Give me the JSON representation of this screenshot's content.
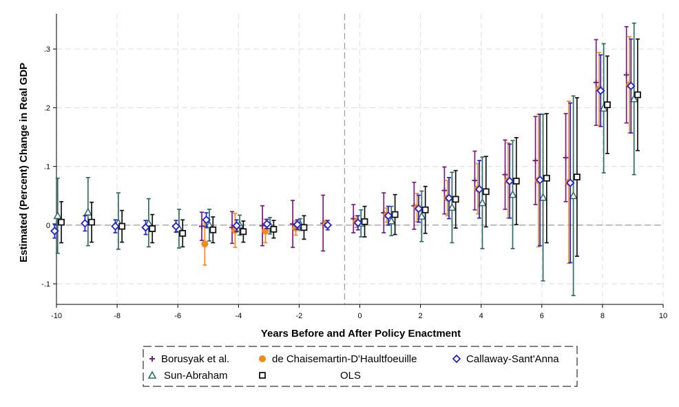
{
  "chart_data": {
    "type": "scatter",
    "title": "",
    "xlabel": "Years Before and After Policy Enactment",
    "ylabel": "Estimated (Percent) Change in Real GDP",
    "xlim": [
      -10,
      10
    ],
    "ylim": [
      -0.135,
      0.36
    ],
    "xticks": [
      -10,
      -8,
      -6,
      -4,
      -2,
      0,
      2,
      4,
      6,
      8,
      10
    ],
    "xtick_labels": [
      "-10",
      "-8",
      "-6",
      "-4",
      "-2",
      "0",
      "2",
      "4",
      "6",
      "8",
      "10"
    ],
    "yticks": [
      -0.1,
      0,
      0.1,
      0.2,
      0.3
    ],
    "ytick_labels": [
      "-.1",
      "0",
      ".1",
      ".2",
      ".3"
    ],
    "reference_lines": {
      "x": -0.5,
      "y": 0
    },
    "grid": true,
    "legend_position": "bottom",
    "series": [
      {
        "name": "Borusyak et al.",
        "marker": "plus",
        "color": "#7a1a7a",
        "points": [
          {
            "x": -5,
            "y": -0.002,
            "lo": -0.026,
            "hi": 0.022
          },
          {
            "x": -4,
            "y": -0.004,
            "lo": -0.031,
            "hi": 0.023
          },
          {
            "x": -3,
            "y": -0.001,
            "lo": -0.035,
            "hi": 0.033
          },
          {
            "x": -2,
            "y": 0.002,
            "lo": -0.038,
            "hi": 0.042
          },
          {
            "x": -1,
            "y": 0.003,
            "lo": -0.044,
            "hi": 0.051
          },
          {
            "x": 0,
            "y": 0.011,
            "lo": -0.013,
            "hi": 0.035
          },
          {
            "x": 1,
            "y": 0.021,
            "lo": -0.013,
            "hi": 0.055
          },
          {
            "x": 2,
            "y": 0.033,
            "lo": -0.007,
            "hi": 0.073
          },
          {
            "x": 3,
            "y": 0.059,
            "lo": 0.019,
            "hi": 0.099
          },
          {
            "x": 4,
            "y": 0.076,
            "lo": 0.026,
            "hi": 0.126
          },
          {
            "x": 5,
            "y": 0.086,
            "lo": 0.027,
            "hi": 0.145
          },
          {
            "x": 6,
            "y": 0.11,
            "lo": 0.035,
            "hi": 0.185
          },
          {
            "x": 7,
            "y": 0.115,
            "lo": 0.04,
            "hi": 0.19
          },
          {
            "x": 8,
            "y": 0.243,
            "lo": 0.17,
            "hi": 0.316
          },
          {
            "x": 9,
            "y": 0.256,
            "lo": 0.174,
            "hi": 0.338
          }
        ]
      },
      {
        "name": "de Chaisemartin-D'Haultfoeuille",
        "marker": "circle",
        "color": "#f28a1c",
        "points": [
          {
            "x": -5,
            "y": -0.032,
            "lo": -0.068,
            "hi": 0.004
          },
          {
            "x": -4,
            "y": -0.009,
            "lo": -0.038,
            "hi": 0.02
          },
          {
            "x": -3,
            "y": -0.01,
            "lo": -0.03,
            "hi": 0.01
          },
          {
            "x": -2,
            "y": -0.005,
            "lo": -0.017,
            "hi": 0.007
          },
          {
            "x": -1,
            "y": 0.002,
            "lo": -0.004,
            "hi": 0.008
          },
          {
            "x": 0,
            "y": 0.006,
            "lo": -0.004,
            "hi": 0.016
          },
          {
            "x": 1,
            "y": 0.017,
            "lo": 0.005,
            "hi": 0.029
          },
          {
            "x": 2,
            "y": 0.03,
            "lo": 0.006,
            "hi": 0.054
          },
          {
            "x": 3,
            "y": 0.046,
            "lo": 0.016,
            "hi": 0.076
          },
          {
            "x": 4,
            "y": 0.062,
            "lo": 0.019,
            "hi": 0.105
          },
          {
            "x": 5,
            "y": 0.076,
            "lo": 0.012,
            "hi": 0.14
          },
          {
            "x": 6,
            "y": 0.076,
            "lo": -0.037,
            "hi": 0.189
          },
          {
            "x": 7,
            "y": 0.073,
            "lo": -0.065,
            "hi": 0.211
          },
          {
            "x": 8,
            "y": 0.232,
            "lo": 0.17,
            "hi": 0.294
          },
          {
            "x": 9,
            "y": 0.239,
            "lo": 0.157,
            "hi": 0.321
          }
        ]
      },
      {
        "name": "Callaway-Sant'Anna",
        "marker": "diamond",
        "color": "#1f1fd6",
        "points": [
          {
            "x": -10,
            "y": -0.01,
            "lo": -0.022,
            "hi": 0.002
          },
          {
            "x": -9,
            "y": 0.003,
            "lo": -0.01,
            "hi": 0.016
          },
          {
            "x": -8,
            "y": -0.002,
            "lo": -0.013,
            "hi": 0.009
          },
          {
            "x": -7,
            "y": -0.004,
            "lo": -0.016,
            "hi": 0.008
          },
          {
            "x": -6,
            "y": -0.002,
            "lo": -0.012,
            "hi": 0.008
          },
          {
            "x": -5,
            "y": 0.009,
            "lo": -0.003,
            "hi": 0.021
          },
          {
            "x": -4,
            "y": -0.001,
            "lo": -0.011,
            "hi": 0.009
          },
          {
            "x": -3,
            "y": 0.002,
            "lo": -0.006,
            "hi": 0.01
          },
          {
            "x": -2,
            "y": 0.001,
            "lo": -0.007,
            "hi": 0.009
          },
          {
            "x": -1,
            "y": 0.0,
            "lo": -0.008,
            "hi": 0.008
          },
          {
            "x": 0,
            "y": 0.004,
            "lo": -0.008,
            "hi": 0.016
          },
          {
            "x": 1,
            "y": 0.016,
            "lo": 0.0,
            "hi": 0.032
          },
          {
            "x": 2,
            "y": 0.028,
            "lo": 0.005,
            "hi": 0.051
          },
          {
            "x": 3,
            "y": 0.046,
            "lo": 0.011,
            "hi": 0.081
          },
          {
            "x": 4,
            "y": 0.061,
            "lo": 0.012,
            "hi": 0.11
          },
          {
            "x": 5,
            "y": 0.075,
            "lo": 0.012,
            "hi": 0.138
          },
          {
            "x": 6,
            "y": 0.077,
            "lo": -0.035,
            "hi": 0.189
          },
          {
            "x": 7,
            "y": 0.072,
            "lo": -0.064,
            "hi": 0.208
          },
          {
            "x": 8,
            "y": 0.229,
            "lo": 0.168,
            "hi": 0.29
          },
          {
            "x": 9,
            "y": 0.237,
            "lo": 0.157,
            "hi": 0.317
          }
        ]
      },
      {
        "name": "Sun-Abraham",
        "marker": "triangle",
        "color": "#2f6b62",
        "points": [
          {
            "x": -10,
            "y": 0.016,
            "lo": -0.048,
            "hi": 0.08
          },
          {
            "x": -9,
            "y": 0.022,
            "lo": -0.035,
            "hi": 0.081
          },
          {
            "x": -8,
            "y": 0.004,
            "lo": -0.041,
            "hi": 0.055
          },
          {
            "x": -7,
            "y": 0.003,
            "lo": -0.037,
            "hi": 0.045
          },
          {
            "x": -6,
            "y": -0.006,
            "lo": -0.039,
            "hi": 0.027
          },
          {
            "x": -5,
            "y": 0.0,
            "lo": -0.027,
            "hi": 0.027
          },
          {
            "x": -4,
            "y": 0.0,
            "lo": -0.017,
            "hi": 0.017
          },
          {
            "x": -3,
            "y": -0.001,
            "lo": -0.015,
            "hi": 0.013
          },
          {
            "x": -2,
            "y": 0.001,
            "lo": -0.009,
            "hi": 0.011
          },
          {
            "x": 0,
            "y": 0.003,
            "lo": -0.02,
            "hi": 0.026
          },
          {
            "x": 1,
            "y": 0.007,
            "lo": -0.018,
            "hi": 0.032
          },
          {
            "x": 2,
            "y": 0.015,
            "lo": -0.028,
            "hi": 0.058
          },
          {
            "x": 3,
            "y": 0.03,
            "lo": -0.03,
            "hi": 0.09
          },
          {
            "x": 4,
            "y": 0.038,
            "lo": -0.04,
            "hi": 0.116
          },
          {
            "x": 5,
            "y": 0.052,
            "lo": -0.04,
            "hi": 0.144
          },
          {
            "x": 6,
            "y": 0.047,
            "lo": -0.095,
            "hi": 0.189
          },
          {
            "x": 7,
            "y": 0.05,
            "lo": -0.12,
            "hi": 0.22
          },
          {
            "x": 8,
            "y": 0.199,
            "lo": 0.089,
            "hi": 0.309
          },
          {
            "x": 9,
            "y": 0.215,
            "lo": 0.086,
            "hi": 0.344
          }
        ]
      },
      {
        "name": "OLS",
        "marker": "square",
        "color": "#111111",
        "points": [
          {
            "x": -10,
            "y": 0.005,
            "lo": -0.03,
            "hi": 0.04
          },
          {
            "x": -9,
            "y": 0.005,
            "lo": -0.029,
            "hi": 0.039
          },
          {
            "x": -8,
            "y": -0.002,
            "lo": -0.029,
            "hi": 0.025
          },
          {
            "x": -7,
            "y": -0.006,
            "lo": -0.03,
            "hi": 0.018
          },
          {
            "x": -6,
            "y": -0.014,
            "lo": -0.037,
            "hi": 0.009
          },
          {
            "x": -5,
            "y": -0.008,
            "lo": -0.03,
            "hi": 0.014
          },
          {
            "x": -4,
            "y": -0.011,
            "lo": -0.029,
            "hi": 0.007
          },
          {
            "x": -3,
            "y": -0.007,
            "lo": -0.022,
            "hi": 0.008
          },
          {
            "x": -2,
            "y": -0.004,
            "lo": -0.024,
            "hi": 0.016
          },
          {
            "x": 0,
            "y": 0.006,
            "lo": -0.02,
            "hi": 0.032
          },
          {
            "x": 1,
            "y": 0.018,
            "lo": -0.016,
            "hi": 0.052
          },
          {
            "x": 2,
            "y": 0.026,
            "lo": -0.014,
            "hi": 0.066
          },
          {
            "x": 3,
            "y": 0.044,
            "lo": -0.005,
            "hi": 0.093
          },
          {
            "x": 4,
            "y": 0.057,
            "lo": -0.003,
            "hi": 0.117
          },
          {
            "x": 5,
            "y": 0.075,
            "lo": 0.001,
            "hi": 0.149
          },
          {
            "x": 6,
            "y": 0.08,
            "lo": -0.03,
            "hi": 0.19
          },
          {
            "x": 7,
            "y": 0.082,
            "lo": -0.053,
            "hi": 0.217
          },
          {
            "x": 8,
            "y": 0.205,
            "lo": 0.122,
            "hi": 0.288
          },
          {
            "x": 9,
            "y": 0.222,
            "lo": 0.127,
            "hi": 0.317
          }
        ]
      }
    ]
  }
}
